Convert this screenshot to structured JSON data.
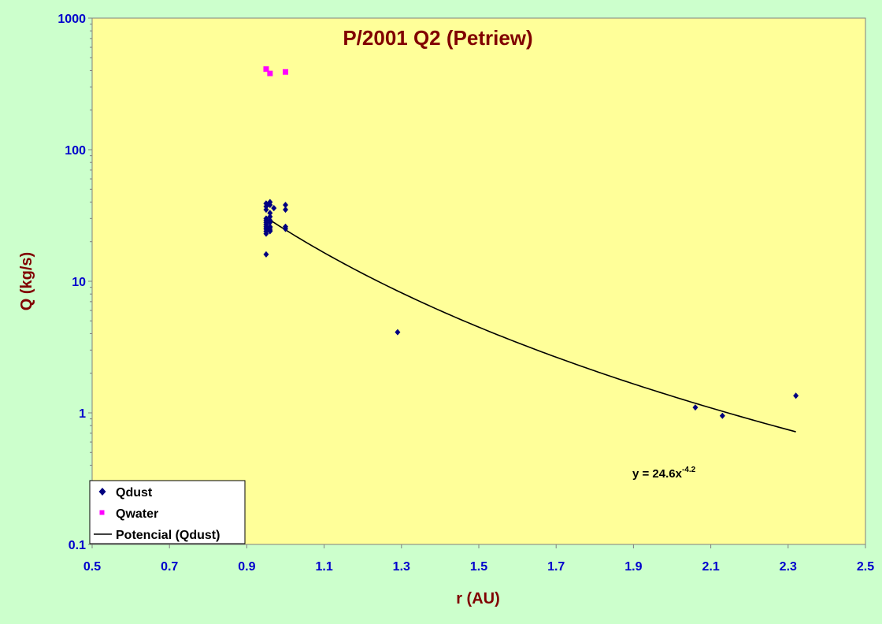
{
  "chart_data": {
    "type": "scatter",
    "title": "P/2001 Q2 (Petriew)",
    "xlabel": "r (AU)",
    "ylabel": "Q (kg/s)",
    "xlim": [
      0.5,
      2.5
    ],
    "ylim": [
      0.1,
      1000
    ],
    "yscale": "log",
    "x_ticks": [
      "0.5",
      "0.7",
      "0.9",
      "1.1",
      "1.3",
      "1.5",
      "1.7",
      "1.9",
      "2.1",
      "2.3",
      "2.5"
    ],
    "y_ticks": [
      "0.1",
      "1",
      "10",
      "100",
      "1000"
    ],
    "grid": false,
    "legend_position": "bottom-left",
    "colors": {
      "plot_bg": "#ffff99",
      "page_bg": "#ccffcc",
      "qdust": "#000080",
      "qwater": "#ff00ff",
      "trend": "#000000"
    },
    "series": [
      {
        "name": "Qdust",
        "marker": "diamond",
        "x": [
          0.95,
          0.95,
          0.96,
          0.96,
          0.97,
          0.95,
          0.96,
          0.96,
          0.95,
          0.95,
          0.96,
          0.96,
          0.95,
          0.95,
          0.95,
          0.96,
          0.95,
          0.96,
          0.95,
          0.95,
          0.96,
          0.95,
          0.96,
          0.95,
          0.95,
          1.0,
          1.0,
          1.0,
          1.0,
          1.29,
          2.06,
          2.13,
          2.32
        ],
        "y": [
          39,
          37,
          40,
          38,
          36,
          35,
          33,
          31,
          30,
          29,
          29,
          28,
          28,
          27,
          27,
          26,
          26,
          25.5,
          25,
          25,
          24.5,
          24,
          24,
          23,
          16,
          38,
          35,
          26,
          25,
          4.1,
          1.1,
          0.95,
          1.35
        ]
      },
      {
        "name": "Qwater",
        "marker": "square",
        "x": [
          0.95,
          0.96,
          1.0
        ],
        "y": [
          410,
          380,
          390
        ]
      },
      {
        "name": "Potencial (Qdust)",
        "type": "line",
        "equation": {
          "a": 24.6,
          "b": -4.2
        },
        "x_range": [
          0.96,
          2.32
        ]
      }
    ],
    "annotation": {
      "text": "y = 24.6x",
      "superscript": "-4.2",
      "x": 2.06,
      "y": 0.38
    }
  }
}
